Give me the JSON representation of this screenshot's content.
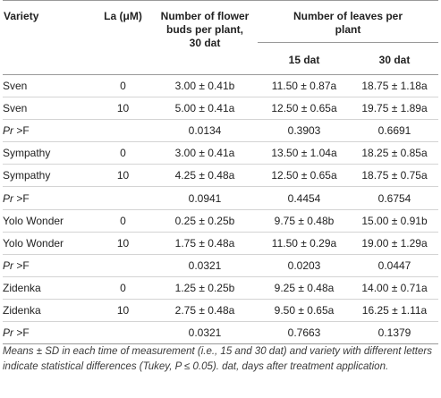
{
  "table": {
    "headers": {
      "variety": "Variety",
      "la": "La (μM)",
      "flower_buds": "Number of flower buds per plant, 30 dat",
      "leaves": "Number of leaves per plant",
      "dat15": "15 dat",
      "dat30": "30 dat"
    },
    "rows": [
      {
        "variety": "Sven",
        "la": "0",
        "buds": "3.00 ± 0.41b",
        "d15": "11.50 ± 0.87a",
        "d30": "18.75 ± 1.18a"
      },
      {
        "variety": "Sven",
        "la": "10",
        "buds": "5.00 ± 0.41a",
        "d15": "12.50 ± 0.65a",
        "d30": "19.75 ± 1.89a"
      },
      {
        "pr": "Pr",
        "gt": " >F",
        "buds": "0.0134",
        "d15": "0.3903",
        "d30": "0.6691"
      },
      {
        "variety": "Sympathy",
        "la": "0",
        "buds": "3.00 ± 0.41a",
        "d15": "13.50 ± 1.04a",
        "d30": "18.25 ± 0.85a"
      },
      {
        "variety": "Sympathy",
        "la": "10",
        "buds": "4.25 ± 0.48a",
        "d15": "12.50 ± 0.65a",
        "d30": "18.75 ± 0.75a"
      },
      {
        "pr": "Pr",
        "gt": " >F",
        "buds": "0.0941",
        "d15": "0.4454",
        "d30": "0.6754"
      },
      {
        "variety": "Yolo Wonder",
        "la": "0",
        "buds": "0.25 ± 0.25b",
        "d15": "9.75 ± 0.48b",
        "d30": "15.00 ± 0.91b"
      },
      {
        "variety": "Yolo Wonder",
        "la": "10",
        "buds": "1.75 ± 0.48a",
        "d15": "11.50 ± 0.29a",
        "d30": "19.00 ± 1.29a"
      },
      {
        "pr": "Pr",
        "gt": " >F",
        "buds": "0.0321",
        "d15": "0.0203",
        "d30": "0.0447"
      },
      {
        "variety": "Zidenka",
        "la": "0",
        "buds": "1.25 ± 0.25b",
        "d15": "9.25 ± 0.48a",
        "d30": "14.00 ± 0.71a"
      },
      {
        "variety": "Zidenka",
        "la": "10",
        "buds": "2.75 ± 0.48a",
        "d15": "9.50 ± 0.65a",
        "d30": "16.25 ± 1.11a"
      },
      {
        "pr": "Pr",
        "gt": " >F",
        "buds": "0.0321",
        "d15": "0.7663",
        "d30": "0.1379"
      }
    ]
  },
  "footnote": "Means ± SD in each time of measurement (i.e., 15 and 30 dat) and variety with different letters indicate statistical differences (Tukey, P ≤ 0.05). dat, days after treatment application."
}
